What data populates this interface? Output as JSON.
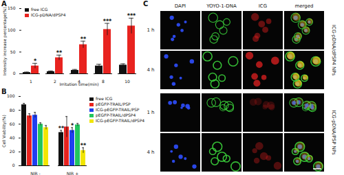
{
  "chart_data": [
    {
      "panel": "A",
      "type": "bar",
      "x_label": "Irritation time(min)",
      "y_label": "Intensity increase percentage(%)",
      "categories": [
        "1",
        "2",
        "4",
        "8",
        "10"
      ],
      "series": [
        {
          "name": "free ICG",
          "color": "#111111",
          "values": [
            3,
            5,
            8,
            18,
            20
          ],
          "errors": [
            1,
            1.5,
            2,
            4,
            3
          ]
        },
        {
          "name": "ICG-pDNA/dPSP4",
          "color": "#e8231f",
          "values": [
            18,
            37,
            67,
            102,
            110
          ],
          "errors": [
            6,
            6,
            8,
            14,
            18
          ],
          "annotations": [
            "*",
            "**",
            "**",
            "***",
            "***"
          ]
        }
      ],
      "ylim": [
        0,
        150
      ],
      "yticks": [
        0,
        50,
        100,
        150
      ],
      "legend": "top-left"
    },
    {
      "panel": "B",
      "type": "bar",
      "y_label": "Cell Viability(%)",
      "categories": [
        "NIR -",
        "NIR +"
      ],
      "series": [
        {
          "name": "free ICG",
          "color": "#111111",
          "values": [
            88,
            48
          ],
          "errors": [
            2,
            3
          ],
          "annotations": [
            null,
            "**"
          ]
        },
        {
          "name": "pEGFP-TRAIL/PSP",
          "color": "#e8231f",
          "values": [
            72,
            56
          ],
          "errors": [
            3,
            15
          ]
        },
        {
          "name": "ICG-pEGFP-TRAIL/PSP",
          "color": "#1f3ff0",
          "values": [
            73,
            51
          ],
          "errors": [
            4,
            4
          ],
          "annotations": [
            null,
            "*"
          ]
        },
        {
          "name": "pEGFP-TRAIL/dPSP4",
          "color": "#22c55e",
          "values": [
            60,
            59
          ],
          "errors": [
            2,
            2
          ]
        },
        {
          "name": "ICG-pEGFP-TRAIL/dPSP4",
          "color": "#f2e600",
          "values": [
            55,
            22
          ],
          "errors": [
            3,
            4
          ],
          "annotations": [
            null,
            "**"
          ]
        }
      ],
      "ylim": [
        0,
        100
      ],
      "yticks": [
        0,
        20,
        40,
        60,
        80,
        100
      ],
      "legend": "right"
    }
  ],
  "image_panel": {
    "panel": "C",
    "columns": [
      "DAPI",
      "YOYO-1-DNA",
      "ICG",
      "merged"
    ],
    "groups": [
      {
        "name": "ICG-pDNA/dPSP4 NPs",
        "rows": [
          "1 h",
          "4 h"
        ]
      },
      {
        "name": "ICG-pDNA/PSP NPs",
        "rows": [
          "1 h",
          "4 h"
        ]
      }
    ]
  }
}
